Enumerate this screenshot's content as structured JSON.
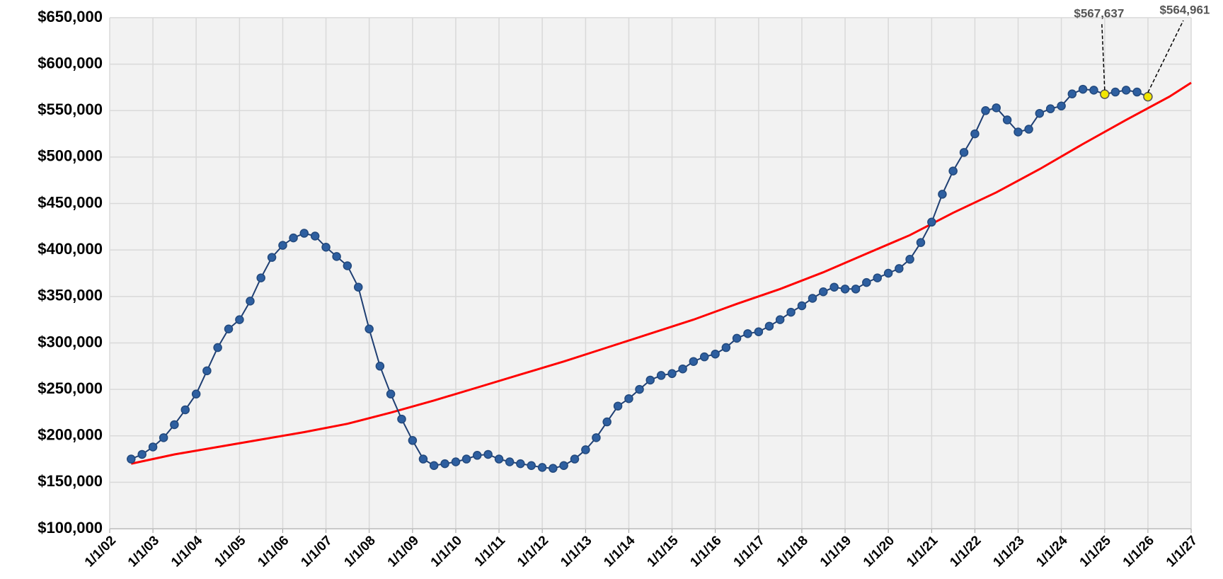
{
  "chart_data": {
    "type": "line",
    "xlim": [
      "2002-01-01",
      "2027-01-01"
    ],
    "xticks": [
      {
        "value": "2002-01-01",
        "label": "1/1/02"
      },
      {
        "value": "2003-01-01",
        "label": "1/1/03"
      },
      {
        "value": "2004-01-01",
        "label": "1/1/04"
      },
      {
        "value": "2005-01-01",
        "label": "1/1/05"
      },
      {
        "value": "2006-01-01",
        "label": "1/1/06"
      },
      {
        "value": "2007-01-01",
        "label": "1/1/07"
      },
      {
        "value": "2008-01-01",
        "label": "1/1/08"
      },
      {
        "value": "2009-01-01",
        "label": "1/1/09"
      },
      {
        "value": "2010-01-01",
        "label": "1/1/10"
      },
      {
        "value": "2011-01-01",
        "label": "1/1/11"
      },
      {
        "value": "2012-01-01",
        "label": "1/1/12"
      },
      {
        "value": "2013-01-01",
        "label": "1/1/13"
      },
      {
        "value": "2014-01-01",
        "label": "1/1/14"
      },
      {
        "value": "2015-01-01",
        "label": "1/1/15"
      },
      {
        "value": "2016-01-01",
        "label": "1/1/16"
      },
      {
        "value": "2017-01-01",
        "label": "1/1/17"
      },
      {
        "value": "2018-01-01",
        "label": "1/1/18"
      },
      {
        "value": "2019-01-01",
        "label": "1/1/19"
      },
      {
        "value": "2020-01-01",
        "label": "1/1/20"
      },
      {
        "value": "2021-01-01",
        "label": "1/1/21"
      },
      {
        "value": "2022-01-01",
        "label": "1/1/22"
      },
      {
        "value": "2023-01-01",
        "label": "1/1/23"
      },
      {
        "value": "2024-01-01",
        "label": "1/1/24"
      },
      {
        "value": "2025-01-01",
        "label": "1/1/25"
      },
      {
        "value": "2026-01-01",
        "label": "1/1/26"
      },
      {
        "value": "2027-01-01",
        "label": "1/1/27"
      }
    ],
    "ylim": [
      100000,
      650000
    ],
    "yticks": [
      {
        "value": 100000,
        "label": "$100,000"
      },
      {
        "value": 150000,
        "label": "$150,000"
      },
      {
        "value": 200000,
        "label": "$200,000"
      },
      {
        "value": 250000,
        "label": "$250,000"
      },
      {
        "value": 300000,
        "label": "$300,000"
      },
      {
        "value": 350000,
        "label": "$350,000"
      },
      {
        "value": 400000,
        "label": "$400,000"
      },
      {
        "value": 450000,
        "label": "$450,000"
      },
      {
        "value": 500000,
        "label": "$500,000"
      },
      {
        "value": 550000,
        "label": "$550,000"
      },
      {
        "value": 600000,
        "label": "$600,000"
      },
      {
        "value": 650000,
        "label": "$650,000"
      }
    ],
    "grid": true,
    "series": [
      {
        "color": "#2e5fa0",
        "markers": true,
        "x": [
          "2002-07-01",
          "2002-10-01",
          "2003-01-01",
          "2003-04-01",
          "2003-07-01",
          "2003-10-01",
          "2004-01-01",
          "2004-04-01",
          "2004-07-01",
          "2004-10-01",
          "2005-01-01",
          "2005-04-01",
          "2005-07-01",
          "2005-10-01",
          "2006-01-01",
          "2006-04-01",
          "2006-07-01",
          "2006-10-01",
          "2007-01-01",
          "2007-04-01",
          "2007-07-01",
          "2007-10-01",
          "2008-01-01",
          "2008-04-01",
          "2008-07-01",
          "2008-10-01",
          "2009-01-01",
          "2009-04-01",
          "2009-07-01",
          "2009-10-01",
          "2010-01-01",
          "2010-04-01",
          "2010-07-01",
          "2010-10-01",
          "2011-01-01",
          "2011-04-01",
          "2011-07-01",
          "2011-10-01",
          "2012-01-01",
          "2012-04-01",
          "2012-07-01",
          "2012-10-01",
          "2013-01-01",
          "2013-04-01",
          "2013-07-01",
          "2013-10-01",
          "2014-01-01",
          "2014-04-01",
          "2014-07-01",
          "2014-10-01",
          "2015-01-01",
          "2015-04-01",
          "2015-07-01",
          "2015-10-01",
          "2016-01-01",
          "2016-04-01",
          "2016-07-01",
          "2016-10-01",
          "2017-01-01",
          "2017-04-01",
          "2017-07-01",
          "2017-10-01",
          "2018-01-01",
          "2018-04-01",
          "2018-07-01",
          "2018-10-01",
          "2019-01-01",
          "2019-04-01",
          "2019-07-01",
          "2019-10-01",
          "2020-01-01",
          "2020-04-01",
          "2020-07-01",
          "2020-10-01",
          "2021-01-01",
          "2021-04-01",
          "2021-07-01",
          "2021-10-01",
          "2022-01-01",
          "2022-04-01",
          "2022-07-01",
          "2022-10-01",
          "2023-01-01",
          "2023-04-01",
          "2023-07-01",
          "2023-10-01",
          "2024-01-01",
          "2024-04-01",
          "2024-07-01",
          "2024-10-01",
          "2025-01-01",
          "2025-04-01",
          "2025-07-01",
          "2025-10-01",
          "2026-01-01"
        ],
        "values": [
          175000,
          180000,
          188000,
          198000,
          212000,
          228000,
          245000,
          270000,
          295000,
          315000,
          325000,
          345000,
          370000,
          392000,
          405000,
          413000,
          418000,
          415000,
          403000,
          393000,
          383000,
          360000,
          315000,
          275000,
          245000,
          218000,
          195000,
          175000,
          168000,
          170000,
          172000,
          175000,
          179000,
          180000,
          175000,
          172000,
          170000,
          168000,
          166000,
          165000,
          168000,
          175000,
          185000,
          198000,
          215000,
          232000,
          240000,
          250000,
          260000,
          265000,
          267000,
          272000,
          280000,
          285000,
          288000,
          295000,
          305000,
          310000,
          312000,
          318000,
          325000,
          333000,
          340000,
          348000,
          355000,
          360000,
          358000,
          358000,
          365000,
          370000,
          375000,
          380000,
          390000,
          408000,
          430000,
          460000,
          485000,
          505000,
          525000,
          550000,
          553000,
          540000,
          527000,
          530000,
          547000,
          552000,
          555000,
          568000,
          573000,
          572000,
          567637,
          570000,
          572000,
          570000,
          564961
        ],
        "value_labels": [
          null,
          null,
          null,
          null,
          null,
          null,
          null,
          null,
          null,
          null,
          null,
          null,
          null,
          null,
          null,
          null,
          null,
          null,
          null,
          null,
          null,
          null,
          null,
          null,
          null,
          null,
          null,
          null,
          null,
          null,
          null,
          null,
          null,
          null,
          null,
          null,
          null,
          null,
          null,
          null,
          null,
          null,
          null,
          null,
          null,
          null,
          null,
          null,
          null,
          null,
          null,
          null,
          null,
          null,
          null,
          null,
          null,
          null,
          null,
          null,
          null,
          null,
          null,
          null,
          null,
          null,
          null,
          null,
          null,
          null,
          null,
          null,
          null,
          null,
          null,
          null,
          null,
          null,
          null,
          null,
          null,
          null,
          null,
          null,
          null,
          null,
          null,
          null,
          null,
          null,
          "$567,637",
          null,
          null,
          null,
          "$564,961"
        ]
      },
      {
        "color": "#ff0000",
        "markers": false,
        "x": [
          "2002-07-01",
          "2003-07-01",
          "2004-07-01",
          "2005-07-01",
          "2006-07-01",
          "2007-07-01",
          "2008-07-01",
          "2009-07-01",
          "2010-07-01",
          "2011-07-01",
          "2012-07-01",
          "2013-07-01",
          "2014-07-01",
          "2015-07-01",
          "2016-07-01",
          "2017-07-01",
          "2018-07-01",
          "2019-07-01",
          "2020-07-01",
          "2021-07-01",
          "2022-07-01",
          "2023-07-01",
          "2024-07-01",
          "2025-07-01",
          "2026-07-01",
          "2027-01-01"
        ],
        "values": [
          170000,
          180000,
          188000,
          196000,
          204000,
          213000,
          225000,
          238000,
          252000,
          266000,
          280000,
          295000,
          310000,
          325000,
          342000,
          358000,
          376000,
          396000,
          416000,
          440000,
          462000,
          487000,
          514000,
          540000,
          565000,
          580000
        ]
      }
    ]
  }
}
